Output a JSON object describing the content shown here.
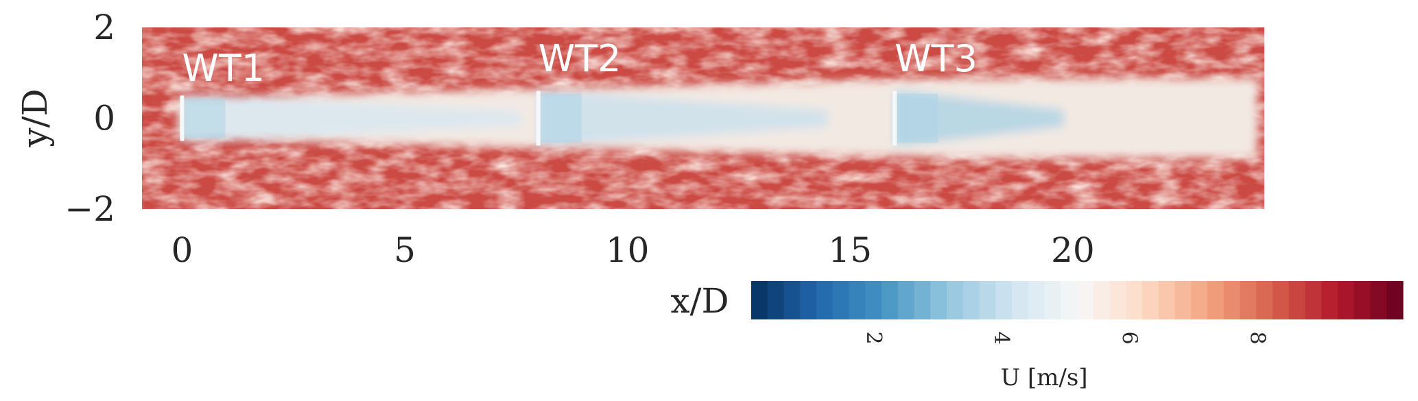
{
  "chart_data": {
    "type": "heatmap",
    "xlabel": "x/D",
    "ylabel": "y/D",
    "xlim": [
      -0.9,
      24.3
    ],
    "ylim": [
      -2,
      2
    ],
    "x_ticks": [
      {
        "value": 0,
        "label": "0"
      },
      {
        "value": 5,
        "label": "5"
      },
      {
        "value": 10,
        "label": "10"
      },
      {
        "value": 15,
        "label": "15"
      },
      {
        "value": 20,
        "label": "20"
      }
    ],
    "y_ticks": [
      {
        "value": 2,
        "label": "2"
      },
      {
        "value": 0,
        "label": "0"
      },
      {
        "value": -2,
        "label": "−2"
      }
    ],
    "freestream_velocity": 8.5,
    "turbines": [
      {
        "name": "WT1",
        "x": 0,
        "y": 0,
        "rotor_diameter": 1.0
      },
      {
        "name": "WT2",
        "x": 8,
        "y": 0,
        "rotor_diameter": 1.2
      },
      {
        "name": "WT3",
        "x": 16,
        "y": 0,
        "rotor_diameter": 1.2
      }
    ],
    "colorbar": {
      "label": "U [m/s]",
      "min": 0.1,
      "max": 10.3,
      "levels": 40,
      "colormap": "RdBu_r",
      "ticks": [
        {
          "value": 2,
          "label": "2"
        },
        {
          "value": 4,
          "label": "4"
        },
        {
          "value": 6,
          "label": "6"
        },
        {
          "value": 8,
          "label": "8"
        }
      ],
      "colormap_stops": [
        "#053061",
        "#2166ac",
        "#4393c3",
        "#92c5de",
        "#d1e5f0",
        "#f7f7f7",
        "#fddbc7",
        "#f4a582",
        "#d6604d",
        "#b2182b",
        "#67001f"
      ]
    }
  }
}
